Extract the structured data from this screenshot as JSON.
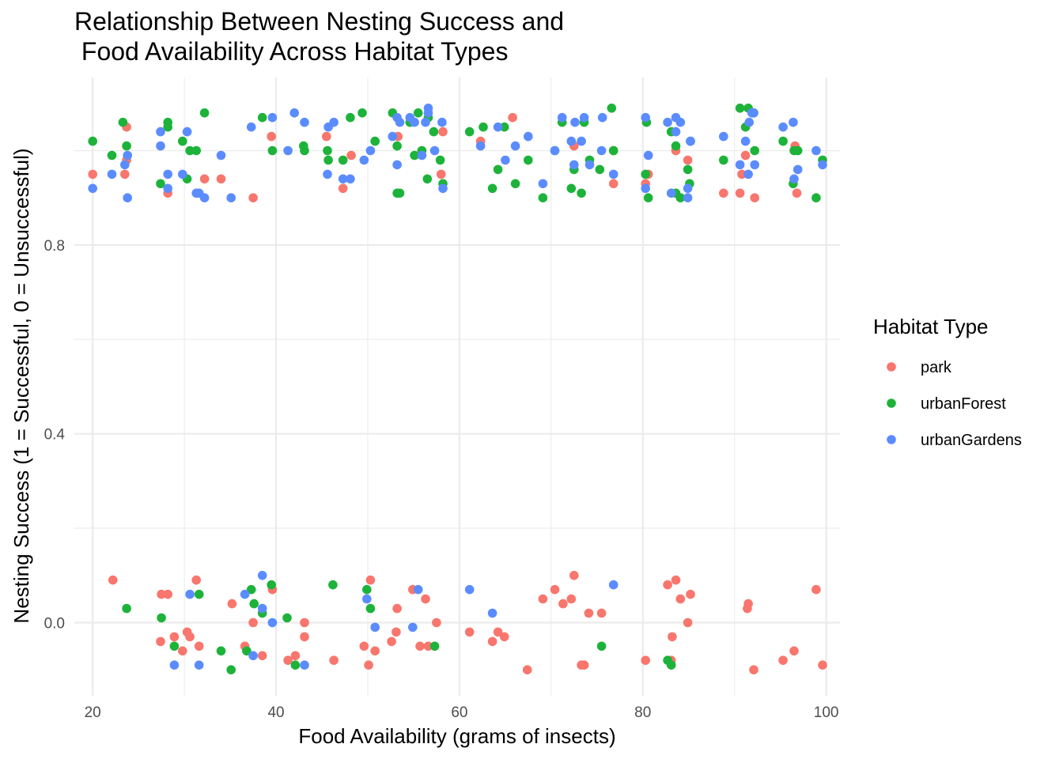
{
  "chart_data": {
    "type": "scatter",
    "title_lines": [
      "Relationship Between Nesting Success and",
      " Food Availability Across Habitat Types"
    ],
    "xlabel": "Food Availability (grams of insects)",
    "ylabel": "Nesting Success (1 = Successful, 0 = Unsuccessful)",
    "xlim": [
      18,
      101.5
    ],
    "ylim": [
      -0.155,
      1.155
    ],
    "xticks": [
      20,
      40,
      60,
      80,
      100
    ],
    "xtick_labels": [
      "20",
      "40",
      "60",
      "80",
      "100"
    ],
    "yticks": [
      0.0,
      0.4,
      0.8
    ],
    "ytick_labels": [
      "0.0",
      "0.4",
      "0.8"
    ],
    "grid": true,
    "legend": {
      "title": "Habitat Type",
      "position": "right",
      "entries": [
        "park",
        "urbanForest",
        "urbanGardens"
      ]
    },
    "colors": {
      "park": "#F8766D",
      "urbanForest": "#1DB33A",
      "urbanGardens": "#5B8CFF"
    },
    "series": [
      {
        "name": "park",
        "points": [
          [
            20,
            0.95
          ],
          [
            23.5,
            0.95
          ],
          [
            23.7,
            0.98
          ],
          [
            23.7,
            1.05
          ],
          [
            28.2,
            0.91
          ],
          [
            32.2,
            0.94
          ],
          [
            34,
            0.94
          ],
          [
            37.5,
            0.9
          ],
          [
            39.5,
            1.03
          ],
          [
            45.5,
            1.03
          ],
          [
            47.3,
            0.92
          ],
          [
            48.2,
            0.99
          ],
          [
            53.3,
            1.03
          ],
          [
            58,
            0.95
          ],
          [
            58.2,
            1.04
          ],
          [
            62.3,
            1.02
          ],
          [
            65.8,
            1.07
          ],
          [
            72.5,
            1.01
          ],
          [
            76.8,
            0.93
          ],
          [
            76.8,
            1.0
          ],
          [
            80.3,
            0.93
          ],
          [
            80.6,
            0.95
          ],
          [
            83.6,
            1.0
          ],
          [
            84.9,
            0.98
          ],
          [
            88.8,
            0.91
          ],
          [
            90.6,
            0.91
          ],
          [
            90.8,
            0.95
          ],
          [
            91.2,
            0.99
          ],
          [
            92.2,
            0.9
          ],
          [
            96.6,
            1.01
          ],
          [
            96.8,
            0.91
          ],
          [
            22.2,
            0.09
          ],
          [
            27.5,
            0.06
          ],
          [
            28.2,
            0.06
          ],
          [
            27.4,
            -0.04
          ],
          [
            28.9,
            -0.03
          ],
          [
            29.8,
            -0.06
          ],
          [
            30.3,
            -0.02
          ],
          [
            30.6,
            -0.03
          ],
          [
            31.3,
            0.09
          ],
          [
            31.6,
            -0.05
          ],
          [
            35.2,
            0.04
          ],
          [
            36.6,
            -0.05
          ],
          [
            37.5,
            0.0
          ],
          [
            38.5,
            -0.07
          ],
          [
            39.6,
            0.07
          ],
          [
            41.3,
            -0.08
          ],
          [
            42.1,
            -0.07
          ],
          [
            43.1,
            0.0
          ],
          [
            43.1,
            -0.03
          ],
          [
            46.3,
            -0.08
          ],
          [
            49.6,
            -0.05
          ],
          [
            50.1,
            -0.09
          ],
          [
            50.3,
            0.09
          ],
          [
            50.8,
            -0.06
          ],
          [
            52.6,
            -0.04
          ],
          [
            53.1,
            -0.02
          ],
          [
            53.2,
            0.03
          ],
          [
            54.9,
            0.07
          ],
          [
            55.7,
            -0.05
          ],
          [
            56.3,
            0.05
          ],
          [
            56.6,
            -0.05
          ],
          [
            57.5,
            0.0
          ],
          [
            61.1,
            -0.02
          ],
          [
            63.6,
            -0.04
          ],
          [
            64.2,
            -0.02
          ],
          [
            64.9,
            -0.03
          ],
          [
            67.4,
            -0.1
          ],
          [
            69.1,
            0.05
          ],
          [
            70.4,
            0.07
          ],
          [
            71.3,
            0.04
          ],
          [
            72.2,
            0.05
          ],
          [
            72.5,
            0.1
          ],
          [
            73.3,
            -0.09
          ],
          [
            73.6,
            -0.09
          ],
          [
            74.1,
            0.02
          ],
          [
            75.5,
            0.02
          ],
          [
            80.3,
            -0.08
          ],
          [
            82.7,
            0.08
          ],
          [
            83.1,
            -0.08
          ],
          [
            83.2,
            -0.03
          ],
          [
            83.6,
            0.09
          ],
          [
            84.1,
            0.05
          ],
          [
            84.9,
            0.0
          ],
          [
            85.2,
            0.06
          ],
          [
            91.4,
            0.03
          ],
          [
            91.5,
            0.04
          ],
          [
            92.1,
            -0.1
          ],
          [
            95.3,
            -0.08
          ],
          [
            96.5,
            -0.06
          ],
          [
            98.9,
            0.07
          ],
          [
            99.6,
            -0.09
          ]
        ]
      },
      {
        "name": "urbanForest",
        "points": [
          [
            20,
            1.02
          ],
          [
            22.1,
            0.99
          ],
          [
            23.3,
            1.06
          ],
          [
            23.7,
            1.01
          ],
          [
            27.4,
            0.93
          ],
          [
            28.2,
            1.06
          ],
          [
            28.2,
            1.05
          ],
          [
            29.8,
            1.02
          ],
          [
            30.3,
            0.94
          ],
          [
            30.6,
            1.0
          ],
          [
            31.3,
            1.0
          ],
          [
            32.2,
            1.08
          ],
          [
            38.5,
            1.07
          ],
          [
            39.6,
            1.0
          ],
          [
            43.0,
            1.01
          ],
          [
            43.1,
            1.0
          ],
          [
            45.6,
            1.0
          ],
          [
            45.7,
            0.98
          ],
          [
            47.3,
            0.98
          ],
          [
            48.1,
            1.07
          ],
          [
            49.4,
            1.08
          ],
          [
            50.8,
            1.02
          ],
          [
            52.7,
            1.08
          ],
          [
            53.2,
            1.01
          ],
          [
            53.2,
            0.91
          ],
          [
            53.5,
            0.91
          ],
          [
            54.6,
            1.06
          ],
          [
            55.1,
            0.99
          ],
          [
            55.5,
            1.08
          ],
          [
            55.9,
            1.0
          ],
          [
            56.5,
            0.94
          ],
          [
            56.6,
            1.07
          ],
          [
            57.2,
            1.04
          ],
          [
            57.9,
            0.98
          ],
          [
            58.2,
            0.93
          ],
          [
            61.1,
            1.04
          ],
          [
            62.6,
            1.05
          ],
          [
            63.6,
            0.92
          ],
          [
            64.2,
            0.96
          ],
          [
            64.9,
            1.05
          ],
          [
            66.1,
            0.93
          ],
          [
            67.5,
            0.98
          ],
          [
            69.1,
            0.9
          ],
          [
            70.4,
            1.0
          ],
          [
            71.2,
            1.06
          ],
          [
            72.2,
            0.92
          ],
          [
            72.5,
            0.96
          ],
          [
            73.3,
            0.91
          ],
          [
            73.6,
            1.06
          ],
          [
            74.2,
            0.98
          ],
          [
            75.3,
            0.96
          ],
          [
            76.6,
            1.09
          ],
          [
            76.8,
            1.0
          ],
          [
            80.3,
            0.95
          ],
          [
            80.4,
            1.06
          ],
          [
            80.6,
            0.9
          ],
          [
            83.1,
            1.04
          ],
          [
            83.6,
            1.01
          ],
          [
            83.6,
            0.91
          ],
          [
            84.1,
            0.9
          ],
          [
            84.9,
            0.96
          ],
          [
            85.1,
            0.93
          ],
          [
            85.2,
            1.02
          ],
          [
            88.8,
            0.98
          ],
          [
            90.6,
            1.09
          ],
          [
            91.2,
            1.05
          ],
          [
            91.5,
            1.09
          ],
          [
            92.1,
            1.08
          ],
          [
            92.2,
            1.0
          ],
          [
            95.3,
            1.02
          ],
          [
            96.4,
            0.93
          ],
          [
            96.5,
            1.0
          ],
          [
            96.9,
            1.0
          ],
          [
            98.9,
            0.9
          ],
          [
            99.6,
            0.98
          ],
          [
            23.7,
            0.03
          ],
          [
            27.5,
            0.01
          ],
          [
            28.9,
            -0.05
          ],
          [
            31.6,
            0.06
          ],
          [
            34,
            -0.06
          ],
          [
            35.1,
            -0.1
          ],
          [
            36.8,
            -0.06
          ],
          [
            37.3,
            0.07
          ],
          [
            37.6,
            0.04
          ],
          [
            38.5,
            0.02
          ],
          [
            39.5,
            0.08
          ],
          [
            41.2,
            0.01
          ],
          [
            42.1,
            -0.09
          ],
          [
            46.2,
            0.08
          ],
          [
            49.9,
            0.07
          ],
          [
            50.3,
            0.03
          ],
          [
            57.3,
            -0.05
          ],
          [
            75.5,
            -0.05
          ],
          [
            82.7,
            -0.08
          ],
          [
            83.1,
            -0.09
          ]
        ]
      },
      {
        "name": "urbanGardens",
        "points": [
          [
            20,
            0.92
          ],
          [
            22.1,
            0.95
          ],
          [
            23.5,
            0.97
          ],
          [
            23.8,
            0.99
          ],
          [
            23.8,
            0.9
          ],
          [
            27.4,
            1.04
          ],
          [
            27.4,
            1.01
          ],
          [
            28.2,
            0.95
          ],
          [
            28.2,
            0.92
          ],
          [
            29.8,
            0.95
          ],
          [
            30.3,
            1.04
          ],
          [
            31.3,
            0.91
          ],
          [
            31.6,
            0.91
          ],
          [
            32.2,
            0.9
          ],
          [
            34.0,
            0.99
          ],
          [
            35.1,
            0.9
          ],
          [
            37.3,
            1.05
          ],
          [
            39.6,
            1.07
          ],
          [
            41.3,
            1.0
          ],
          [
            42.0,
            1.08
          ],
          [
            43.1,
            1.06
          ],
          [
            45.6,
            0.95
          ],
          [
            45.7,
            1.05
          ],
          [
            46.3,
            1.06
          ],
          [
            47.3,
            0.94
          ],
          [
            48.1,
            0.94
          ],
          [
            49.6,
            0.98
          ],
          [
            50.3,
            1.0
          ],
          [
            52.7,
            1.03
          ],
          [
            53.2,
            0.97
          ],
          [
            53.2,
            1.07
          ],
          [
            53.5,
            1.06
          ],
          [
            54.6,
            1.07
          ],
          [
            55.1,
            1.06
          ],
          [
            55.9,
            0.99
          ],
          [
            56.3,
            1.06
          ],
          [
            56.6,
            1.08
          ],
          [
            56.6,
            1.09
          ],
          [
            57.3,
            1.0
          ],
          [
            58.1,
            1.06
          ],
          [
            58.2,
            0.92
          ],
          [
            62.3,
            1.01
          ],
          [
            64.2,
            1.05
          ],
          [
            65.0,
            0.98
          ],
          [
            66.1,
            1.01
          ],
          [
            67.5,
            1.03
          ],
          [
            69.1,
            0.93
          ],
          [
            70.4,
            1.0
          ],
          [
            71.2,
            1.07
          ],
          [
            72.2,
            1.02
          ],
          [
            72.5,
            0.97
          ],
          [
            72.6,
            1.06
          ],
          [
            73.3,
            1.02
          ],
          [
            73.6,
            1.07
          ],
          [
            74.2,
            0.97
          ],
          [
            75.5,
            1.0
          ],
          [
            75.6,
            1.07
          ],
          [
            76.8,
            0.95
          ],
          [
            80.3,
            0.92
          ],
          [
            80.3,
            1.07
          ],
          [
            80.6,
            0.99
          ],
          [
            82.7,
            1.06
          ],
          [
            83.1,
            0.91
          ],
          [
            83.6,
            1.07
          ],
          [
            83.6,
            1.04
          ],
          [
            84.1,
            1.06
          ],
          [
            84.9,
            0.92
          ],
          [
            84.9,
            0.9
          ],
          [
            85.2,
            1.02
          ],
          [
            88.8,
            1.03
          ],
          [
            90.6,
            0.97
          ],
          [
            91.2,
            1.02
          ],
          [
            91.5,
            0.95
          ],
          [
            91.6,
            1.06
          ],
          [
            91.9,
            1.08
          ],
          [
            92.1,
            1.08
          ],
          [
            92.2,
            0.97
          ],
          [
            95.3,
            1.05
          ],
          [
            96.4,
            1.06
          ],
          [
            96.5,
            0.94
          ],
          [
            96.9,
            0.96
          ],
          [
            98.9,
            1.0
          ],
          [
            99.6,
            0.97
          ],
          [
            28.9,
            -0.09
          ],
          [
            30.6,
            0.06
          ],
          [
            31.6,
            -0.09
          ],
          [
            36.6,
            0.06
          ],
          [
            37.5,
            -0.07
          ],
          [
            38.5,
            0.03
          ],
          [
            38.5,
            0.1
          ],
          [
            39.6,
            0.0
          ],
          [
            43.1,
            -0.09
          ],
          [
            49.9,
            0.05
          ],
          [
            50.8,
            -0.01
          ],
          [
            54.9,
            -0.01
          ],
          [
            55.5,
            0.07
          ],
          [
            61.1,
            0.07
          ],
          [
            63.6,
            0.02
          ],
          [
            76.8,
            0.08
          ]
        ]
      }
    ]
  }
}
